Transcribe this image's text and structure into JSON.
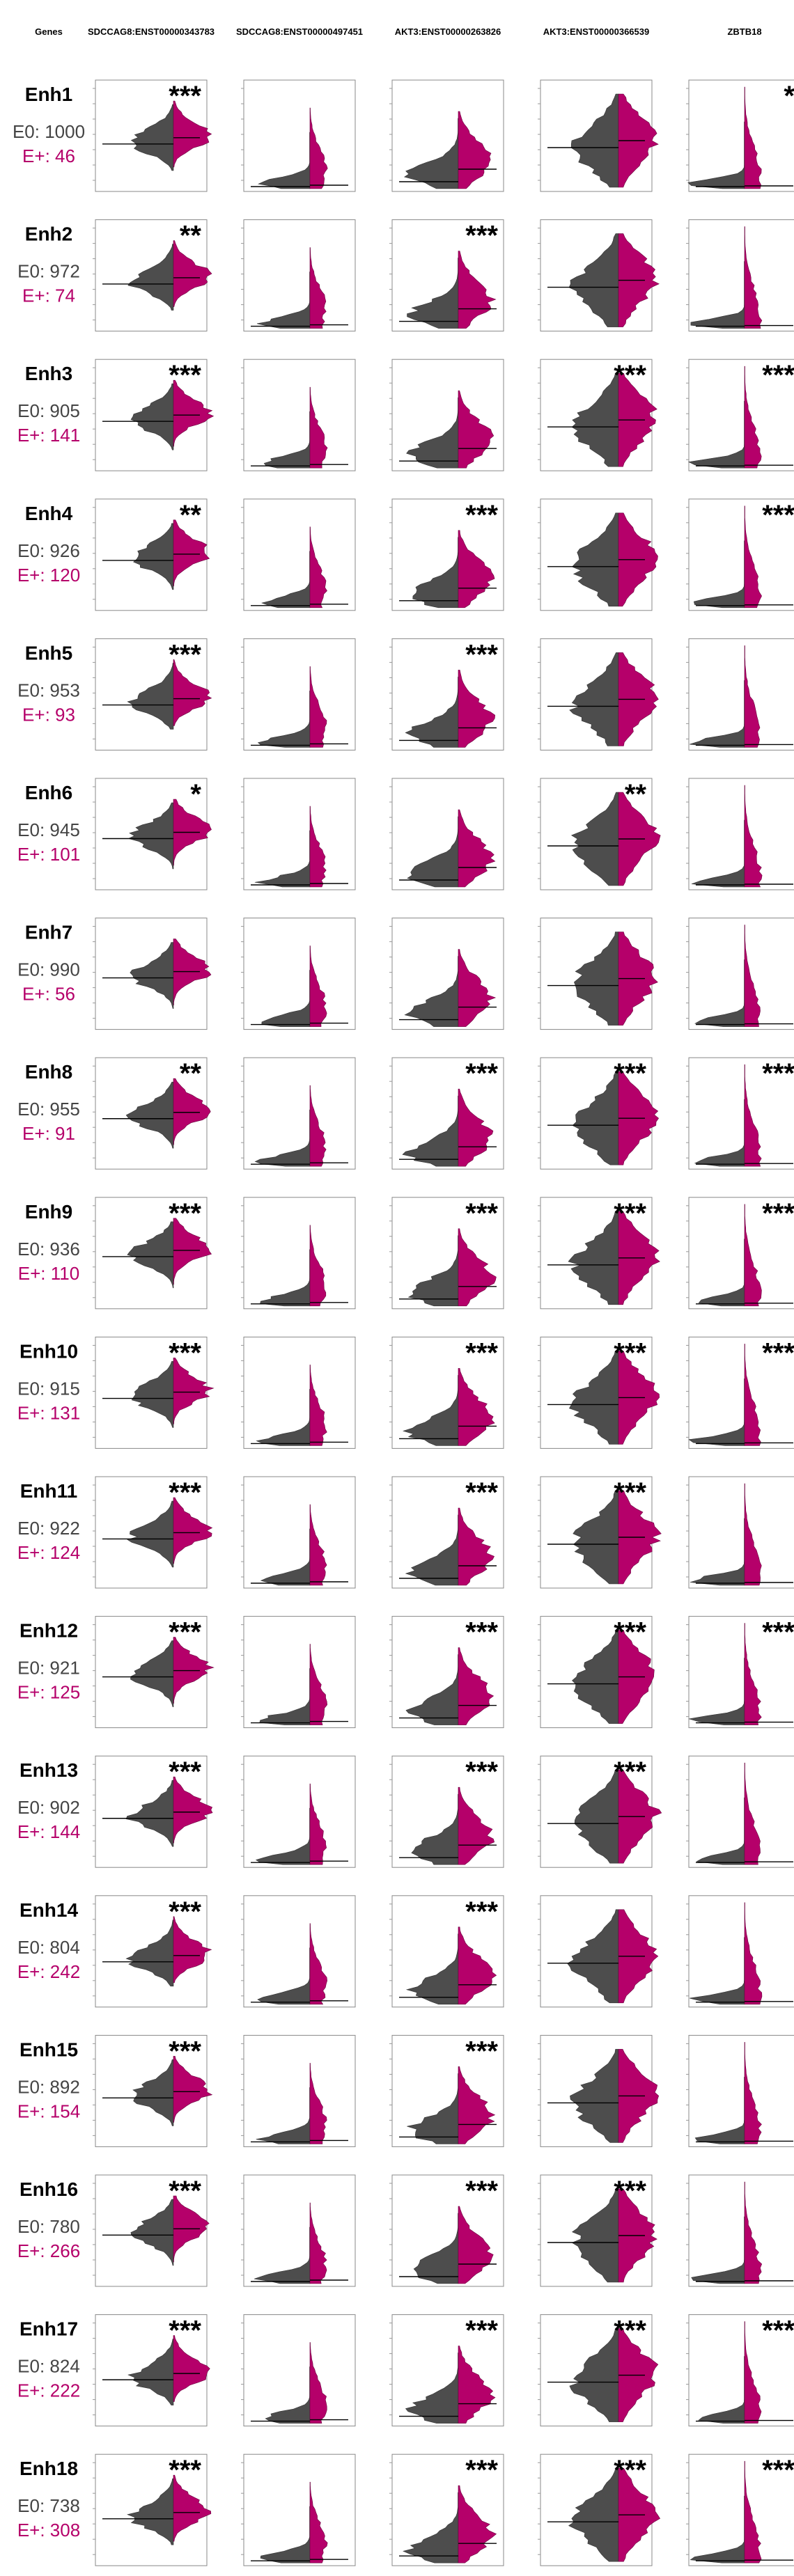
{
  "colors": {
    "E0": "#4d4d4d",
    "Eplus": "#b5006a"
  },
  "chart_data": {
    "type": "violin-grid",
    "header_label": "Genes",
    "columns": [
      "SDCCAG8:ENST00000343783",
      "SDCCAG8:ENST00000497451",
      "AKT3:ENST00000263826",
      "AKT3:ENST00000366539",
      "ZBTB18"
    ],
    "rows": [
      {
        "name": "Enh1",
        "e0": "E0: 1000",
        "ep": "E+: 46",
        "sig": [
          "***",
          "",
          "",
          "",
          "*"
        ]
      },
      {
        "name": "Enh2",
        "e0": "E0: 972",
        "ep": "E+: 74",
        "sig": [
          "**",
          "",
          "***",
          "",
          ""
        ]
      },
      {
        "name": "Enh3",
        "e0": "E0: 905",
        "ep": "E+: 141",
        "sig": [
          "***",
          "",
          "",
          "***",
          "***"
        ]
      },
      {
        "name": "Enh4",
        "e0": "E0: 926",
        "ep": "E+: 120",
        "sig": [
          "**",
          "",
          "***",
          "",
          "***"
        ]
      },
      {
        "name": "Enh5",
        "e0": "E0: 953",
        "ep": "E+: 93",
        "sig": [
          "***",
          "",
          "***",
          "",
          ""
        ]
      },
      {
        "name": "Enh6",
        "e0": "E0: 945",
        "ep": "E+: 101",
        "sig": [
          "*",
          "",
          "",
          "**",
          ""
        ]
      },
      {
        "name": "Enh7",
        "e0": "E0: 990",
        "ep": "E+: 56",
        "sig": [
          "",
          "",
          "",
          "",
          ""
        ]
      },
      {
        "name": "Enh8",
        "e0": "E0: 955",
        "ep": "E+: 91",
        "sig": [
          "**",
          "",
          "***",
          "***",
          "***"
        ]
      },
      {
        "name": "Enh9",
        "e0": "E0: 936",
        "ep": "E+: 110",
        "sig": [
          "***",
          "",
          "***",
          "***",
          "***"
        ]
      },
      {
        "name": "Enh10",
        "e0": "E0: 915",
        "ep": "E+: 131",
        "sig": [
          "***",
          "",
          "***",
          "***",
          "***"
        ]
      },
      {
        "name": "Enh11",
        "e0": "E0: 922",
        "ep": "E+: 124",
        "sig": [
          "***",
          "",
          "***",
          "***",
          ""
        ]
      },
      {
        "name": "Enh12",
        "e0": "E0: 921",
        "ep": "E+: 125",
        "sig": [
          "***",
          "",
          "***",
          "***",
          "***"
        ]
      },
      {
        "name": "Enh13",
        "e0": "E0: 902",
        "ep": "E+: 144",
        "sig": [
          "***",
          "",
          "***",
          "***",
          ""
        ]
      },
      {
        "name": "Enh14",
        "e0": "E0: 804",
        "ep": "E+: 242",
        "sig": [
          "***",
          "",
          "***",
          "",
          ""
        ]
      },
      {
        "name": "Enh15",
        "e0": "E0: 892",
        "ep": "E+: 154",
        "sig": [
          "***",
          "",
          "***",
          "",
          ""
        ]
      },
      {
        "name": "Enh16",
        "e0": "E0: 780",
        "ep": "E+: 266",
        "sig": [
          "***",
          "",
          "***",
          "***",
          ""
        ]
      },
      {
        "name": "Enh17",
        "e0": "E0: 824",
        "ep": "E+: 222",
        "sig": [
          "***",
          "",
          "***",
          "***",
          "***"
        ]
      },
      {
        "name": "Enh18",
        "e0": "E0: 738",
        "ep": "E+: 308",
        "sig": [
          "***",
          "",
          "***",
          "***",
          "***"
        ]
      }
    ]
  }
}
